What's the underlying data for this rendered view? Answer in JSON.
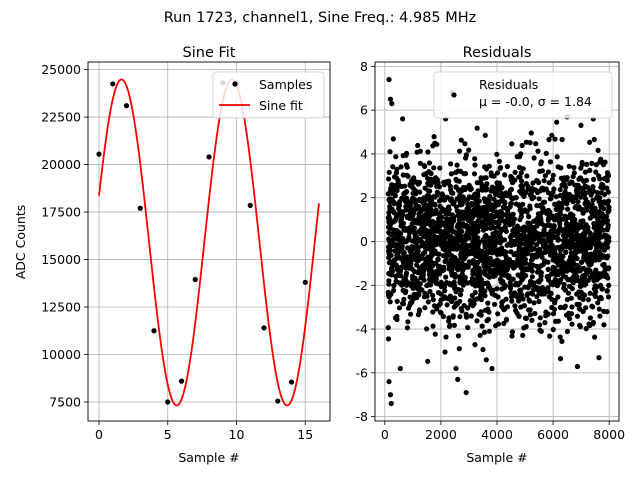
{
  "figure": {
    "suptitle": "Run 1723, channel1, Sine Freq.: 4.985 MHz"
  },
  "chart_data": [
    {
      "type": "scatter+line",
      "title": "Sine Fit",
      "xlabel": "Sample #",
      "ylabel": "ADC Counts",
      "xlim": [
        -0.8,
        16.8
      ],
      "ylim": [
        6500,
        25400
      ],
      "xticks": [
        0,
        5,
        10,
        15
      ],
      "yticks": [
        7500,
        10000,
        12500,
        15000,
        17500,
        20000,
        22500,
        25000
      ],
      "grid": true,
      "legend": {
        "placement": "top-right",
        "entries": [
          "Samples",
          "Sine fit"
        ]
      },
      "series": [
        {
          "name": "Samples",
          "kind": "scatter",
          "color": "#000000",
          "x": [
            0,
            1,
            2,
            3,
            4,
            5,
            6,
            7,
            8,
            9,
            10,
            11,
            12,
            13,
            14,
            15
          ],
          "y": [
            20550,
            24250,
            23100,
            17700,
            11250,
            7500,
            8600,
            13950,
            20400,
            24300,
            24300,
            17850,
            11400,
            7550,
            8550,
            13800
          ]
        },
        {
          "name": "Sine fit",
          "kind": "line",
          "color": "#ff0000",
          "model": {
            "offset": 15900,
            "amplitude": 8580,
            "period": 8.03,
            "phase": 0.29,
            "x_from": 0,
            "x_to": 16
          }
        }
      ]
    },
    {
      "type": "scatter",
      "title": "Residuals",
      "xlabel": "Sample #",
      "ylabel": "",
      "xlim": [
        -350,
        8350
      ],
      "ylim": [
        -8.2,
        8.2
      ],
      "xticks": [
        0,
        2000,
        4000,
        6000,
        8000
      ],
      "yticks": [
        -8,
        -6,
        -4,
        -2,
        0,
        2,
        4,
        6,
        8
      ],
      "grid": true,
      "legend": {
        "placement": "top-right",
        "entries": [
          "Residuals",
          "μ = -0.0, σ = 1.84"
        ]
      },
      "series": [
        {
          "name": "Residuals",
          "color": "#000000",
          "n_points": 8000,
          "mean": -0.0,
          "std": 1.84,
          "outliers": [
            [
              150,
              7.4
            ],
            [
              200,
              6.5
            ],
            [
              250,
              6.3
            ],
            [
              2400,
              6.8
            ],
            [
              6500,
              5.7
            ],
            [
              150,
              -6.4
            ],
            [
              200,
              -7.0
            ],
            [
              230,
              -7.4
            ],
            [
              2900,
              -6.9
            ],
            [
              2600,
              -6.3
            ]
          ]
        }
      ]
    }
  ]
}
